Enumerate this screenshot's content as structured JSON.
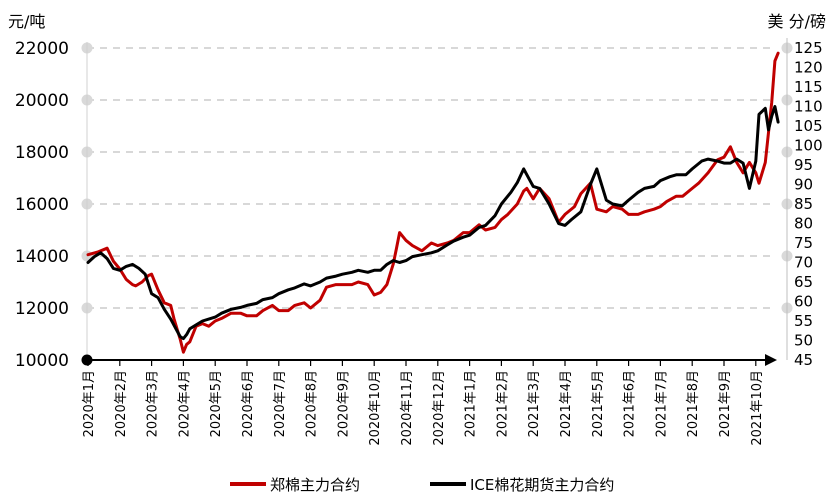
{
  "chart_data": {
    "type": "line",
    "title": "",
    "y_unit_left": "元/吨",
    "y_unit_right": "美 分/磅",
    "ylim": [
      10000,
      22000
    ],
    "y2lim": [
      45,
      125
    ],
    "yticks": [
      "10000",
      "12000",
      "14000",
      "16000",
      "18000",
      "20000",
      "22000"
    ],
    "y2ticks": [
      "45",
      "50",
      "55",
      "60",
      "65",
      "70",
      "75",
      "80",
      "85",
      "90",
      "95",
      "100",
      "105",
      "110",
      "115",
      "120",
      "125"
    ],
    "grid": "dashed horizontal at left-axis major ticks",
    "xticks": [
      "2020年1月",
      "2020年2月",
      "2020年3月",
      "2020年4月",
      "2020年5月",
      "2020年6月",
      "2020年7月",
      "2020年8月",
      "2020年9月",
      "2020年10月",
      "2020年11月",
      "2020年12月",
      "2021年1月",
      "2021年2月",
      "2021年3月",
      "2021年4月",
      "2021年5月",
      "2021年6月",
      "2021年7月",
      "2021年8月",
      "2021年9月",
      "2021年10月"
    ],
    "series": [
      {
        "name": "郑棉主力合约",
        "color": "#c00000",
        "axis": "left",
        "x": [
          0,
          0.3,
          0.6,
          0.8,
          1.0,
          1.2,
          1.4,
          1.5,
          1.7,
          1.9,
          2.0,
          2.2,
          2.4,
          2.6,
          2.7,
          2.8,
          2.9,
          3.0,
          3.1,
          3.2,
          3.4,
          3.6,
          3.8,
          4.0,
          4.2,
          4.5,
          4.8,
          5.0,
          5.3,
          5.5,
          5.8,
          6.0,
          6.3,
          6.5,
          6.8,
          7.0,
          7.3,
          7.5,
          7.8,
          8.0,
          8.3,
          8.5,
          8.8,
          9.0,
          9.2,
          9.4,
          9.5,
          9.6,
          9.7,
          9.8,
          10.0,
          10.2,
          10.5,
          10.8,
          11.0,
          11.3,
          11.5,
          11.8,
          12.0,
          12.3,
          12.5,
          12.8,
          13.0,
          13.2,
          13.5,
          13.7,
          13.8,
          14.0,
          14.2,
          14.5,
          14.8,
          15.0,
          15.3,
          15.5,
          15.8,
          16.0,
          16.3,
          16.5,
          16.8,
          17.0,
          17.3,
          17.5,
          17.8,
          18.0,
          18.2,
          18.5,
          18.7,
          19.0,
          19.2,
          19.5,
          19.8,
          20.0,
          20.2,
          20.4,
          20.6,
          20.8,
          21.0,
          21.1,
          21.3,
          21.5,
          21.6,
          21.7
        ],
        "values": [
          14050,
          14150,
          14300,
          13800,
          13500,
          13100,
          12900,
          12850,
          13000,
          13250,
          13300,
          12700,
          12200,
          12100,
          11600,
          11200,
          10800,
          10300,
          10600,
          10700,
          11300,
          11400,
          11300,
          11500,
          11600,
          11800,
          11800,
          11700,
          11700,
          11900,
          12100,
          11900,
          11900,
          12100,
          12200,
          12000,
          12300,
          12800,
          12900,
          12900,
          12900,
          13000,
          12900,
          12500,
          12600,
          12900,
          13300,
          13700,
          14300,
          14900,
          14600,
          14400,
          14200,
          14500,
          14400,
          14500,
          14600,
          14900,
          14900,
          15200,
          15000,
          15100,
          15400,
          15600,
          16000,
          16500,
          16600,
          16200,
          16600,
          16200,
          15300,
          15600,
          15900,
          16400,
          16800,
          15800,
          15700,
          15900,
          15800,
          15600,
          15600,
          15700,
          15800,
          15900,
          16100,
          16300,
          16300,
          16600,
          16800,
          17200,
          17700,
          17800,
          18200,
          17600,
          17200,
          17600,
          17200,
          16800,
          17600,
          19900,
          21500,
          21800
        ]
      },
      {
        "name": "ICE棉花期货主力合约",
        "color": "#000000",
        "axis": "right",
        "x": [
          0,
          0.2,
          0.4,
          0.6,
          0.8,
          1.0,
          1.2,
          1.4,
          1.6,
          1.8,
          2.0,
          2.2,
          2.4,
          2.6,
          2.8,
          2.9,
          3.0,
          3.1,
          3.2,
          3.4,
          3.6,
          3.8,
          4.0,
          4.2,
          4.5,
          4.8,
          5.0,
          5.3,
          5.5,
          5.8,
          6.0,
          6.3,
          6.5,
          6.8,
          7.0,
          7.3,
          7.5,
          7.8,
          8.0,
          8.3,
          8.5,
          8.8,
          9.0,
          9.2,
          9.4,
          9.6,
          9.8,
          10.0,
          10.2,
          10.5,
          10.8,
          11.0,
          11.3,
          11.5,
          11.8,
          12.0,
          12.3,
          12.5,
          12.8,
          13.0,
          13.3,
          13.5,
          13.7,
          13.9,
          14.0,
          14.2,
          14.5,
          14.8,
          15.0,
          15.2,
          15.5,
          15.8,
          16.0,
          16.3,
          16.5,
          16.8,
          17.0,
          17.3,
          17.5,
          17.8,
          18.0,
          18.3,
          18.5,
          18.8,
          19.0,
          19.3,
          19.5,
          19.8,
          20.0,
          20.2,
          20.4,
          20.6,
          20.8,
          21.0,
          21.1,
          21.3,
          21.4,
          21.5,
          21.6,
          21.7
        ],
        "values": [
          70,
          71.5,
          72.5,
          71,
          68.5,
          68,
          69,
          69.5,
          68.5,
          67,
          62,
          61,
          58,
          55.5,
          52.5,
          51,
          50.5,
          51.5,
          53,
          54,
          55,
          55.5,
          56,
          57,
          58,
          58.5,
          59,
          59.5,
          60.5,
          61,
          62,
          63,
          63.5,
          64.5,
          64,
          65,
          66,
          66.5,
          67,
          67.5,
          68,
          67.5,
          68,
          68,
          69.5,
          70.5,
          70,
          70.5,
          71.5,
          72,
          72.5,
          73,
          74.5,
          75.5,
          76.5,
          77,
          79,
          79.5,
          82,
          85,
          88,
          90.5,
          94,
          91,
          89.5,
          89,
          85,
          80,
          79.5,
          81,
          83,
          90,
          94,
          86,
          85,
          84.5,
          86,
          88,
          89,
          89.5,
          91,
          92,
          92.5,
          92.5,
          94,
          96,
          96.5,
          96,
          95.5,
          95.5,
          96.5,
          95.5,
          89,
          96,
          108,
          109.5,
          104,
          107.5,
          110,
          106
        ]
      }
    ]
  }
}
